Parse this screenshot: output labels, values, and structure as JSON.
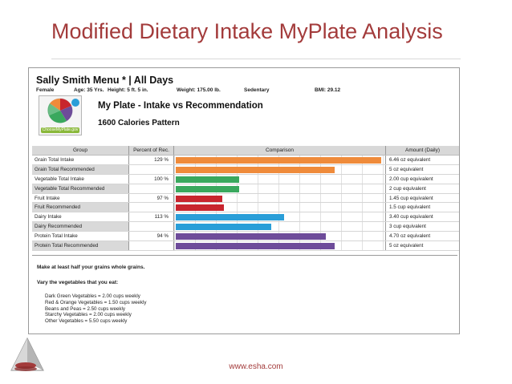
{
  "slide": {
    "title": "Modified Dietary Intake MyPlate Analysis",
    "footer_url": "www.esha.com"
  },
  "report": {
    "menu_title": "Sally Smith Menu * | All Days",
    "gender": "Female",
    "age": "Age: 35 Yrs.",
    "height": "Height: 5 ft. 5 in.",
    "weight": "Weight: 175.00 lb.",
    "activity": "Sedentary",
    "bmi": "BMI: 29.12",
    "plate_title": "My Plate - Intake vs Recommendation",
    "pattern": "1600 Calories Pattern",
    "logo_text": "ChooseMyPlate.gov"
  },
  "chart_data": {
    "type": "bar",
    "columns": [
      "Group",
      "Percent of Rec.",
      "Comparison",
      "Amount (Daily)"
    ],
    "rows": [
      {
        "group": "Grain Total Intake",
        "percent": "129 %",
        "amount": "6.46 oz equivalent",
        "value": 129,
        "color": "#ef8b3b",
        "rec": false
      },
      {
        "group": "Grain Total Recommended",
        "percent": "",
        "amount": "5 oz equivalent",
        "value": 100,
        "color": "#ef8b3b",
        "rec": true
      },
      {
        "group": "Vegetable Total Intake",
        "percent": "100 %",
        "amount": "2.00 cup equivalent",
        "value": 40,
        "color": "#3aa85e",
        "rec": false
      },
      {
        "group": "Vegetable Total Recommended",
        "percent": "",
        "amount": "2 cup equivalent",
        "value": 40,
        "color": "#3aa85e",
        "rec": true
      },
      {
        "group": "Fruit Intake",
        "percent": "97 %",
        "amount": "1.45 cup equivalent",
        "value": 29,
        "color": "#c8252e",
        "rec": false
      },
      {
        "group": "Fruit Recommended",
        "percent": "",
        "amount": "1.5 cup equivalent",
        "value": 30,
        "color": "#c8252e",
        "rec": true
      },
      {
        "group": "Dairy Intake",
        "percent": "113 %",
        "amount": "3.40 cup equivalent",
        "value": 68,
        "color": "#2a9ed8",
        "rec": false
      },
      {
        "group": "Dairy Recommended",
        "percent": "",
        "amount": "3 cup equivalent",
        "value": 60,
        "color": "#2a9ed8",
        "rec": true
      },
      {
        "group": "Protein Total Intake",
        "percent": "94 %",
        "amount": "4.70 oz equivalent",
        "value": 94,
        "color": "#6e4c9a",
        "rec": false
      },
      {
        "group": "Protein Total Recommended",
        "percent": "",
        "amount": "5 oz equivalent",
        "value": 100,
        "color": "#6e4c9a",
        "rec": true
      }
    ],
    "x_max": 130
  },
  "notes": {
    "grains": "Make at least half your grains whole grains.",
    "veg_heading": "Vary the vegetables that you eat:",
    "veg_items": [
      "Dark Green Vegetables = 2.00 cups weekly",
      "Red & Orange Vegetables = 1.50 cups weekly",
      "Beans and Peas = 2.50 cups weekly",
      "Starchy Vegetables = 2.00 cups weekly",
      "Other Vegetables = 5.50 cups weekly"
    ]
  }
}
